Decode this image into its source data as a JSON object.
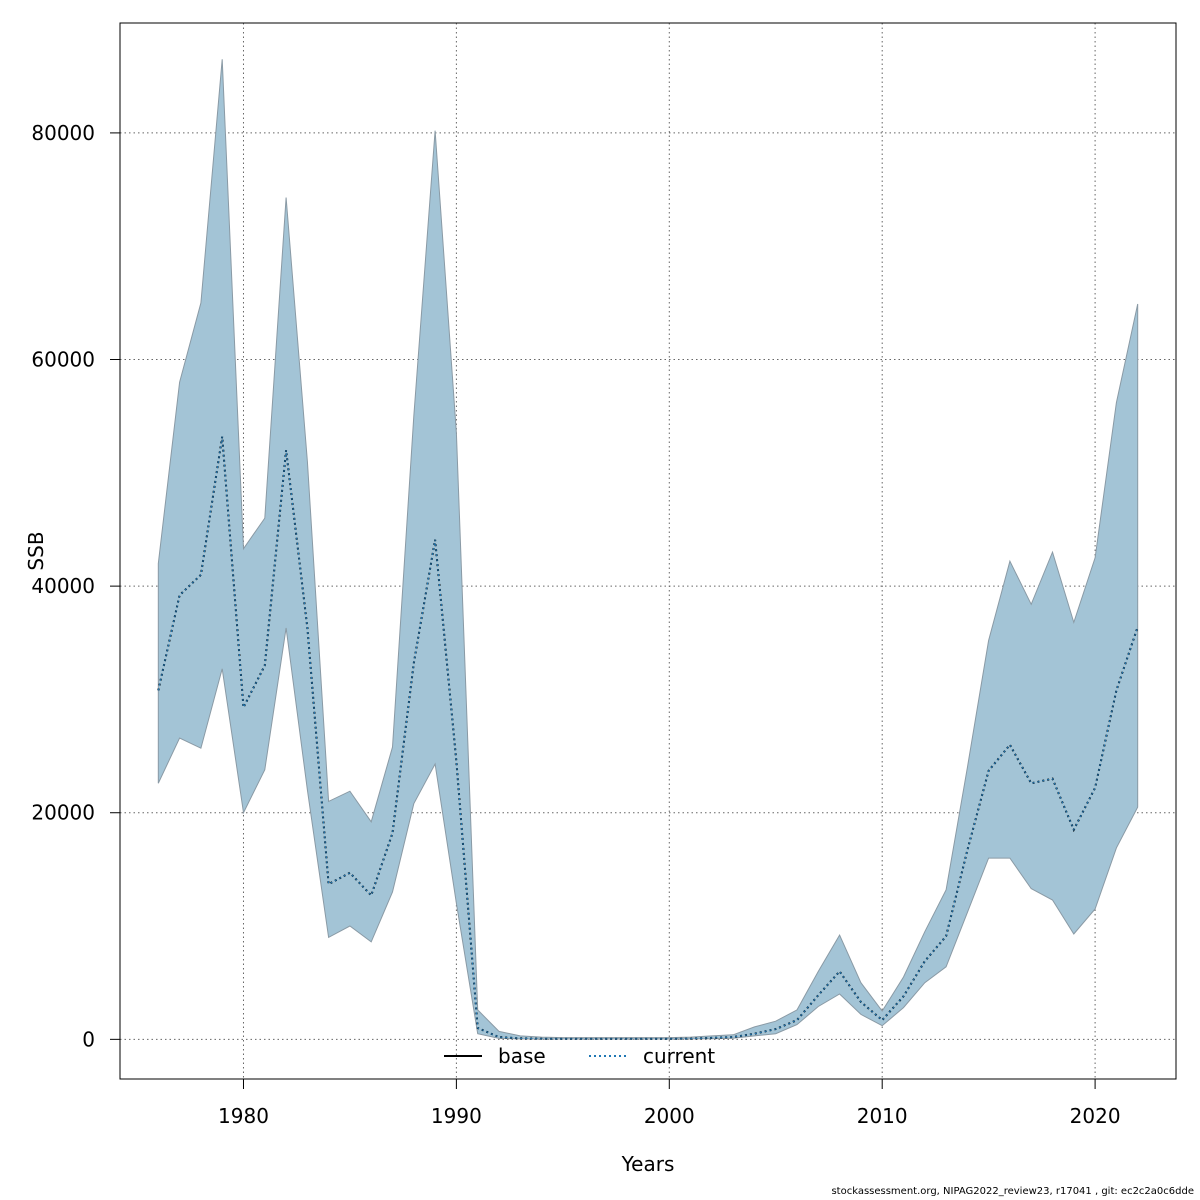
{
  "chart_data": {
    "type": "area",
    "xlabel": "Years",
    "ylabel": "SSB",
    "xlim": [
      1974.2,
      2023.8
    ],
    "ylim": [
      -3500,
      89700
    ],
    "x_ticks": [
      1980,
      1990,
      2000,
      2010,
      2020
    ],
    "y_ticks": [
      0,
      20000,
      40000,
      60000,
      80000
    ],
    "grid": true,
    "legend_position": "bottom-center",
    "legend": [
      {
        "name": "base",
        "style": "solid",
        "color": "#000000"
      },
      {
        "name": "current",
        "style": "dotted",
        "color": "#1f77b4"
      }
    ],
    "band_color": "#a3c4d6",
    "x": [
      1976,
      1977,
      1978,
      1979,
      1980,
      1981,
      1982,
      1983,
      1984,
      1985,
      1986,
      1987,
      1988,
      1989,
      1990,
      1991,
      1992,
      1993,
      1994,
      1995,
      1996,
      1997,
      1998,
      1999,
      2000,
      2001,
      2002,
      2003,
      2004,
      2005,
      2006,
      2007,
      2008,
      2009,
      2010,
      2011,
      2012,
      2013,
      2014,
      2015,
      2016,
      2017,
      2018,
      2019,
      2020,
      2021,
      2022
    ],
    "band_upper": [
      42000,
      58000,
      65000,
      86500,
      43300,
      46000,
      74300,
      51000,
      21000,
      21900,
      19200,
      25800,
      55000,
      80200,
      53500,
      2600,
      700,
      300,
      200,
      150,
      150,
      150,
      150,
      150,
      150,
      200,
      300,
      400,
      1100,
      1600,
      2600,
      6000,
      9200,
      5000,
      2500,
      5500,
      9500,
      13200,
      24000,
      35200,
      42200,
      38400,
      43000,
      36800,
      42500,
      56200,
      64900
    ],
    "band_lower": [
      22600,
      26600,
      25700,
      32700,
      20000,
      23800,
      36300,
      22000,
      9000,
      10000,
      8600,
      13000,
      20800,
      24300,
      12000,
      500,
      80,
      40,
      30,
      30,
      30,
      30,
      30,
      30,
      30,
      40,
      60,
      100,
      300,
      500,
      1300,
      2900,
      4000,
      2200,
      1200,
      2800,
      5000,
      6400,
      11200,
      16000,
      16000,
      13300,
      12300,
      9300,
      11500,
      16900,
      20500
    ],
    "series": [
      {
        "name": "base",
        "values": [
          30800,
          39200,
          41000,
          53200,
          29300,
          33000,
          52000,
          36300,
          13700,
          14700,
          12700,
          18200,
          33200,
          44100,
          24500,
          1000,
          200,
          80,
          50,
          40,
          40,
          40,
          40,
          40,
          40,
          60,
          130,
          200,
          500,
          900,
          1700,
          3900,
          6000,
          3300,
          1700,
          3800,
          6900,
          9100,
          16700,
          23700,
          26000,
          22600,
          23000,
          18500,
          22200,
          30800,
          36400
        ]
      },
      {
        "name": "current",
        "values": [
          30800,
          39200,
          41000,
          53200,
          29300,
          33000,
          52000,
          36300,
          13700,
          14700,
          12700,
          18200,
          33200,
          44100,
          24500,
          1000,
          200,
          80,
          50,
          40,
          40,
          40,
          40,
          40,
          40,
          60,
          130,
          200,
          500,
          900,
          1700,
          3900,
          6000,
          3300,
          1700,
          3800,
          6900,
          9100,
          16700,
          23700,
          26000,
          22600,
          23000,
          18500,
          22200,
          30800,
          36400
        ]
      }
    ]
  },
  "footer_text": "stockassessment.org, NIPAG2022_review23, r17041 , git: ec2c2a0c6dde"
}
